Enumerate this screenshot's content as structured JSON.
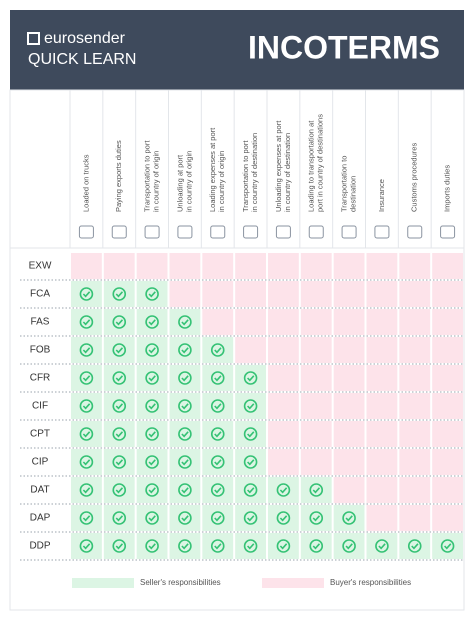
{
  "header": {
    "brand": "eurosender",
    "subtitle": "QUICK LEARN",
    "title": "INCOTERMS"
  },
  "table": {
    "columns": [
      [
        "Loaded on trucks"
      ],
      [
        "Paying exports duties"
      ],
      [
        "Transportation to port",
        "in country of origin"
      ],
      [
        "Unloading at port",
        "in country of origin"
      ],
      [
        "Loading expenses at port",
        "in country of origin"
      ],
      [
        "Transportation to port",
        "in country of destination"
      ],
      [
        "Unloading expenses at port",
        "in country of destination"
      ],
      [
        "Loading to transportation at",
        "port in country of destinations"
      ],
      [
        "Transportation to",
        "destination"
      ],
      [
        "Insurance"
      ],
      [
        "Customs procedures"
      ],
      [
        "Imports duties"
      ]
    ],
    "rows": [
      {
        "label": "EXW",
        "seller_columns": 0
      },
      {
        "label": "FCA",
        "seller_columns": 3
      },
      {
        "label": "FAS",
        "seller_columns": 4
      },
      {
        "label": "FOB",
        "seller_columns": 5
      },
      {
        "label": "CFR",
        "seller_columns": 6
      },
      {
        "label": "CIF",
        "seller_columns": 6
      },
      {
        "label": "CPT",
        "seller_columns": 6
      },
      {
        "label": "CIP",
        "seller_columns": 6
      },
      {
        "label": "DAT",
        "seller_columns": 8
      },
      {
        "label": "DAP",
        "seller_columns": 9
      },
      {
        "label": "DDP",
        "seller_columns": 12
      }
    ]
  },
  "legend": {
    "seller": "Seller's responsibilities",
    "buyer": "Buyer's responsibilities"
  }
}
